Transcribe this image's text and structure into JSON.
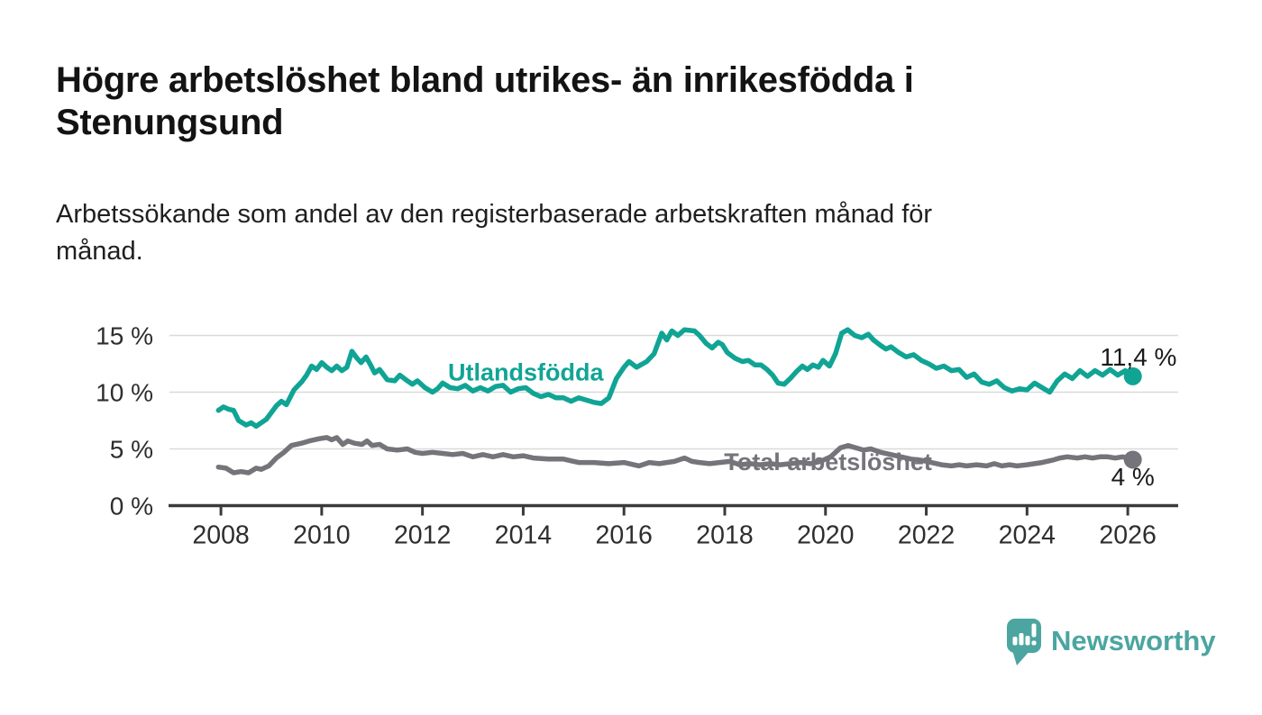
{
  "header": {
    "title_line1": "Högre arbetslöshet bland utrikes- än inrikesfödda i",
    "title_line2": "Stenungsund",
    "subtitle_line1": "Arbetssökande som andel av den registerbaserade arbetskraften månad för",
    "subtitle_line2": "månad."
  },
  "footer": {
    "brand": "Newsworthy",
    "brand_color": "#4CA5A0"
  },
  "chart_data": {
    "type": "line",
    "title": "Högre arbetslöshet bland utrikes- än inrikesfödda i Stenungsund",
    "subtitle": "Arbetssökande som andel av den registerbaserade arbetskraften månad för månad.",
    "xlabel": "",
    "ylabel": "%",
    "xlim": [
      2007,
      2027
    ],
    "ylim": [
      0,
      16
    ],
    "grid": true,
    "legend_position": "inline-labels",
    "colors": {
      "foreign_born": "#10A495",
      "total": "#74747A",
      "grid": "#DADADA",
      "axis": "#3A3A3A",
      "tick_text": "#2E2E2E",
      "value_text": "#1A1A1A"
    },
    "xticks": [
      {
        "v": 2008,
        "label": "2008"
      },
      {
        "v": 2010,
        "label": "2010"
      },
      {
        "v": 2012,
        "label": "2012"
      },
      {
        "v": 2014,
        "label": "2014"
      },
      {
        "v": 2016,
        "label": "2016"
      },
      {
        "v": 2018,
        "label": "2018"
      },
      {
        "v": 2020,
        "label": "2020"
      },
      {
        "v": 2022,
        "label": "2022"
      },
      {
        "v": 2024,
        "label": "2024"
      },
      {
        "v": 2026,
        "label": "2026"
      }
    ],
    "yticks": [
      {
        "v": 0,
        "label": "0 %"
      },
      {
        "v": 5,
        "label": "5 %"
      },
      {
        "v": 10,
        "label": "10 %"
      },
      {
        "v": 15,
        "label": "15 %"
      }
    ],
    "series": [
      {
        "name": "Total arbetslöshet",
        "color": "#74747A",
        "end_label": "4 %",
        "end_value": 4,
        "points": [
          [
            2007.95,
            3.4
          ],
          [
            2008.1,
            3.3
          ],
          [
            2008.25,
            2.9
          ],
          [
            2008.4,
            3.0
          ],
          [
            2008.55,
            2.9
          ],
          [
            2008.7,
            3.3
          ],
          [
            2008.8,
            3.2
          ],
          [
            2008.95,
            3.5
          ],
          [
            2009.1,
            4.2
          ],
          [
            2009.25,
            4.7
          ],
          [
            2009.4,
            5.3
          ],
          [
            2009.6,
            5.5
          ],
          [
            2009.75,
            5.7
          ],
          [
            2009.95,
            5.9
          ],
          [
            2010.1,
            6.0
          ],
          [
            2010.2,
            5.8
          ],
          [
            2010.3,
            6.0
          ],
          [
            2010.42,
            5.4
          ],
          [
            2010.52,
            5.7
          ],
          [
            2010.65,
            5.5
          ],
          [
            2010.8,
            5.4
          ],
          [
            2010.9,
            5.7
          ],
          [
            2011.0,
            5.3
          ],
          [
            2011.15,
            5.4
          ],
          [
            2011.3,
            5.0
          ],
          [
            2011.5,
            4.9
          ],
          [
            2011.7,
            5.0
          ],
          [
            2011.85,
            4.7
          ],
          [
            2012.0,
            4.6
          ],
          [
            2012.2,
            4.7
          ],
          [
            2012.4,
            4.6
          ],
          [
            2012.6,
            4.5
          ],
          [
            2012.8,
            4.6
          ],
          [
            2013.0,
            4.3
          ],
          [
            2013.2,
            4.5
          ],
          [
            2013.4,
            4.3
          ],
          [
            2013.6,
            4.5
          ],
          [
            2013.8,
            4.3
          ],
          [
            2014.0,
            4.4
          ],
          [
            2014.2,
            4.2
          ],
          [
            2014.5,
            4.1
          ],
          [
            2014.8,
            4.1
          ],
          [
            2015.1,
            3.8
          ],
          [
            2015.4,
            3.8
          ],
          [
            2015.7,
            3.7
          ],
          [
            2016.0,
            3.8
          ],
          [
            2016.3,
            3.5
          ],
          [
            2016.5,
            3.8
          ],
          [
            2016.7,
            3.7
          ],
          [
            2017.0,
            3.9
          ],
          [
            2017.2,
            4.2
          ],
          [
            2017.35,
            3.9
          ],
          [
            2017.5,
            3.8
          ],
          [
            2017.7,
            3.7
          ],
          [
            2017.9,
            3.8
          ],
          [
            2018.1,
            3.9
          ],
          [
            2018.3,
            3.6
          ],
          [
            2018.5,
            3.7
          ],
          [
            2018.7,
            3.6
          ],
          [
            2018.9,
            3.7
          ],
          [
            2019.1,
            3.6
          ],
          [
            2019.3,
            3.7
          ],
          [
            2019.5,
            3.8
          ],
          [
            2019.7,
            3.7
          ],
          [
            2019.9,
            3.9
          ],
          [
            2020.1,
            4.3
          ],
          [
            2020.3,
            5.1
          ],
          [
            2020.45,
            5.3
          ],
          [
            2020.6,
            5.1
          ],
          [
            2020.75,
            4.9
          ],
          [
            2020.9,
            5.0
          ],
          [
            2021.1,
            4.7
          ],
          [
            2021.3,
            4.5
          ],
          [
            2021.5,
            4.3
          ],
          [
            2021.7,
            4.1
          ],
          [
            2021.9,
            4.0
          ],
          [
            2022.1,
            3.8
          ],
          [
            2022.3,
            3.6
          ],
          [
            2022.5,
            3.5
          ],
          [
            2022.65,
            3.6
          ],
          [
            2022.8,
            3.5
          ],
          [
            2023.0,
            3.6
          ],
          [
            2023.2,
            3.5
          ],
          [
            2023.35,
            3.7
          ],
          [
            2023.5,
            3.5
          ],
          [
            2023.65,
            3.6
          ],
          [
            2023.8,
            3.5
          ],
          [
            2024.0,
            3.6
          ],
          [
            2024.15,
            3.7
          ],
          [
            2024.3,
            3.8
          ],
          [
            2024.5,
            4.0
          ],
          [
            2024.65,
            4.2
          ],
          [
            2024.8,
            4.3
          ],
          [
            2025.0,
            4.2
          ],
          [
            2025.15,
            4.3
          ],
          [
            2025.3,
            4.2
          ],
          [
            2025.45,
            4.3
          ],
          [
            2025.6,
            4.3
          ],
          [
            2025.75,
            4.2
          ],
          [
            2025.9,
            4.3
          ],
          [
            2026.1,
            4.05
          ]
        ]
      },
      {
        "name": "Utlandsfödda",
        "color": "#10A495",
        "end_label": "11,4 %",
        "end_value": 11.4,
        "points": [
          [
            2007.95,
            8.4
          ],
          [
            2008.05,
            8.7
          ],
          [
            2008.15,
            8.5
          ],
          [
            2008.25,
            8.4
          ],
          [
            2008.35,
            7.5
          ],
          [
            2008.5,
            7.1
          ],
          [
            2008.6,
            7.3
          ],
          [
            2008.7,
            7.0
          ],
          [
            2008.8,
            7.3
          ],
          [
            2008.9,
            7.6
          ],
          [
            2009.0,
            8.2
          ],
          [
            2009.1,
            8.8
          ],
          [
            2009.2,
            9.2
          ],
          [
            2009.3,
            8.9
          ],
          [
            2009.45,
            10.2
          ],
          [
            2009.6,
            10.9
          ],
          [
            2009.7,
            11.5
          ],
          [
            2009.8,
            12.3
          ],
          [
            2009.9,
            12.0
          ],
          [
            2010.0,
            12.6
          ],
          [
            2010.1,
            12.2
          ],
          [
            2010.2,
            11.9
          ],
          [
            2010.3,
            12.3
          ],
          [
            2010.4,
            11.9
          ],
          [
            2010.5,
            12.2
          ],
          [
            2010.6,
            13.6
          ],
          [
            2010.7,
            13.0
          ],
          [
            2010.78,
            12.6
          ],
          [
            2010.88,
            13.1
          ],
          [
            2010.97,
            12.4
          ],
          [
            2011.05,
            11.7
          ],
          [
            2011.15,
            12.0
          ],
          [
            2011.3,
            11.1
          ],
          [
            2011.45,
            11.0
          ],
          [
            2011.55,
            11.5
          ],
          [
            2011.7,
            11.0
          ],
          [
            2011.8,
            10.7
          ],
          [
            2011.9,
            11.0
          ],
          [
            2012.05,
            10.4
          ],
          [
            2012.2,
            10.0
          ],
          [
            2012.3,
            10.3
          ],
          [
            2012.4,
            10.8
          ],
          [
            2012.55,
            10.4
          ],
          [
            2012.7,
            10.3
          ],
          [
            2012.85,
            10.6
          ],
          [
            2013.0,
            10.1
          ],
          [
            2013.15,
            10.4
          ],
          [
            2013.3,
            10.1
          ],
          [
            2013.45,
            10.5
          ],
          [
            2013.6,
            10.6
          ],
          [
            2013.75,
            10.0
          ],
          [
            2013.9,
            10.3
          ],
          [
            2014.05,
            10.4
          ],
          [
            2014.2,
            9.9
          ],
          [
            2014.35,
            9.6
          ],
          [
            2014.5,
            9.8
          ],
          [
            2014.65,
            9.5
          ],
          [
            2014.8,
            9.5
          ],
          [
            2014.95,
            9.2
          ],
          [
            2015.1,
            9.5
          ],
          [
            2015.25,
            9.3
          ],
          [
            2015.4,
            9.1
          ],
          [
            2015.55,
            9.0
          ],
          [
            2015.7,
            9.5
          ],
          [
            2015.85,
            11.2
          ],
          [
            2016.0,
            12.2
          ],
          [
            2016.1,
            12.7
          ],
          [
            2016.25,
            12.2
          ],
          [
            2016.45,
            12.7
          ],
          [
            2016.6,
            13.4
          ],
          [
            2016.75,
            15.2
          ],
          [
            2016.85,
            14.6
          ],
          [
            2016.95,
            15.4
          ],
          [
            2017.07,
            15.0
          ],
          [
            2017.2,
            15.5
          ],
          [
            2017.4,
            15.4
          ],
          [
            2017.5,
            15.0
          ],
          [
            2017.63,
            14.3
          ],
          [
            2017.75,
            13.9
          ],
          [
            2017.87,
            14.4
          ],
          [
            2017.95,
            14.2
          ],
          [
            2018.05,
            13.5
          ],
          [
            2018.2,
            13.0
          ],
          [
            2018.35,
            12.7
          ],
          [
            2018.47,
            12.8
          ],
          [
            2018.6,
            12.4
          ],
          [
            2018.72,
            12.4
          ],
          [
            2018.84,
            12.0
          ],
          [
            2018.95,
            11.5
          ],
          [
            2019.06,
            10.8
          ],
          [
            2019.18,
            10.7
          ],
          [
            2019.3,
            11.2
          ],
          [
            2019.42,
            11.8
          ],
          [
            2019.54,
            12.3
          ],
          [
            2019.64,
            12.0
          ],
          [
            2019.75,
            12.4
          ],
          [
            2019.86,
            12.2
          ],
          [
            2019.95,
            12.8
          ],
          [
            2020.08,
            12.3
          ],
          [
            2020.2,
            13.4
          ],
          [
            2020.32,
            15.2
          ],
          [
            2020.44,
            15.5
          ],
          [
            2020.58,
            15.0
          ],
          [
            2020.72,
            14.8
          ],
          [
            2020.85,
            15.1
          ],
          [
            2020.95,
            14.6
          ],
          [
            2021.1,
            14.1
          ],
          [
            2021.2,
            13.8
          ],
          [
            2021.3,
            14.0
          ],
          [
            2021.45,
            13.5
          ],
          [
            2021.6,
            13.1
          ],
          [
            2021.75,
            13.3
          ],
          [
            2021.9,
            12.8
          ],
          [
            2022.05,
            12.5
          ],
          [
            2022.2,
            12.1
          ],
          [
            2022.35,
            12.3
          ],
          [
            2022.5,
            11.9
          ],
          [
            2022.65,
            12.0
          ],
          [
            2022.8,
            11.3
          ],
          [
            2022.95,
            11.6
          ],
          [
            2023.1,
            10.9
          ],
          [
            2023.25,
            10.7
          ],
          [
            2023.4,
            11.0
          ],
          [
            2023.55,
            10.4
          ],
          [
            2023.7,
            10.1
          ],
          [
            2023.85,
            10.3
          ],
          [
            2024.0,
            10.2
          ],
          [
            2024.15,
            10.8
          ],
          [
            2024.3,
            10.4
          ],
          [
            2024.45,
            10.0
          ],
          [
            2024.6,
            11.0
          ],
          [
            2024.75,
            11.6
          ],
          [
            2024.9,
            11.2
          ],
          [
            2025.05,
            11.9
          ],
          [
            2025.2,
            11.4
          ],
          [
            2025.35,
            11.9
          ],
          [
            2025.5,
            11.5
          ],
          [
            2025.65,
            12.0
          ],
          [
            2025.8,
            11.5
          ],
          [
            2025.95,
            11.9
          ],
          [
            2026.1,
            11.4
          ]
        ]
      }
    ],
    "series_labels": [
      {
        "text": "Utlandsfödda",
        "x": 2014.05,
        "y": 11.78,
        "color": "#10A495",
        "anchor": "middle"
      },
      {
        "text": "Total arbetslöshet",
        "x": 2020.05,
        "y": 3.88,
        "color": "#74747A",
        "anchor": "middle"
      }
    ],
    "value_labels": [
      {
        "text": "11,4 %",
        "x": 2025.45,
        "y": 13.1,
        "anchor": "start"
      },
      {
        "text": "4 %",
        "x": 2026.1,
        "y": 2.55,
        "anchor": "middle"
      }
    ]
  }
}
